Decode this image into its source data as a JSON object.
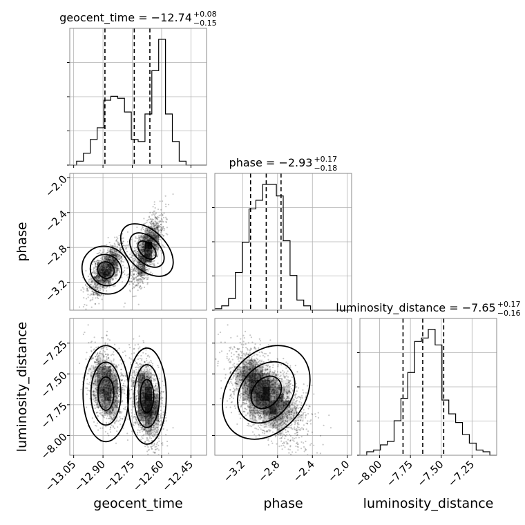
{
  "chart_data": {
    "type": "corner",
    "parameters": [
      "geocent_time",
      "phase",
      "luminosity_distance"
    ],
    "panel_titles": [
      {
        "param": "geocent_time",
        "text": "geocent_time = −12.74",
        "sup": "+0.08",
        "sub": "−0.15"
      },
      {
        "param": "phase",
        "text": "phase = −2.93",
        "sup": "+0.17",
        "sub": "−0.18"
      },
      {
        "param": "luminosity_distance",
        "text": "luminosity_distance = −7.65",
        "sup": "+0.17",
        "sub": "−0.16"
      }
    ],
    "axis_labels": {
      "bottom": [
        "geocent_time",
        "phase",
        "luminosity_distance"
      ],
      "left": [
        "phase",
        "luminosity_distance"
      ]
    },
    "ranges": {
      "geocent_time": [
        -13.07,
        -12.37
      ],
      "phase": [
        -3.52,
        -1.95
      ],
      "luminosity_distance": [
        -8.16,
        -7.05
      ]
    },
    "ticks": {
      "geocent_time": [
        {
          "v": -13.05,
          "label": "−13.05"
        },
        {
          "v": -12.9,
          "label": "−12.90"
        },
        {
          "v": -12.75,
          "label": "−12.75"
        },
        {
          "v": -12.6,
          "label": "−12.60"
        },
        {
          "v": -12.45,
          "label": "−12.45"
        }
      ],
      "phase": [
        {
          "v": -3.2,
          "label": "−3.2"
        },
        {
          "v": -2.8,
          "label": "−2.8"
        },
        {
          "v": -2.4,
          "label": "−2.4"
        },
        {
          "v": -2.0,
          "label": "−2.0"
        }
      ],
      "luminosity_distance": [
        {
          "v": -8.0,
          "label": "−8.00"
        },
        {
          "v": -7.75,
          "label": "−7.75"
        },
        {
          "v": -7.5,
          "label": "−7.50"
        },
        {
          "v": -7.25,
          "label": "−7.25"
        }
      ]
    },
    "quantiles": {
      "geocent_time": [
        -12.89,
        -12.74,
        -12.66
      ],
      "phase": [
        -3.11,
        -2.93,
        -2.76
      ],
      "luminosity_distance": [
        -7.81,
        -7.65,
        -7.48
      ]
    },
    "histograms": {
      "geocent_time": {
        "start": -13.07,
        "step": 0.035,
        "counts": [
          0,
          2,
          6,
          13,
          19,
          33,
          35,
          34,
          27,
          13,
          12,
          26,
          48,
          64,
          26,
          12,
          2,
          0,
          0,
          0
        ]
      },
      "phase": {
        "start": -3.52,
        "step": 0.0785,
        "counts": [
          1,
          3,
          8,
          26,
          47,
          70,
          76,
          87,
          87,
          79,
          48,
          24,
          7,
          3,
          0,
          0,
          0,
          0,
          0,
          0
        ]
      },
      "luminosity_distance": {
        "start": -8.16,
        "step": 0.0555,
        "counts": [
          0,
          2,
          3,
          6,
          8,
          20,
          33,
          48,
          66,
          68,
          73,
          64,
          32,
          24,
          19,
          12,
          7,
          3,
          2,
          0
        ]
      }
    },
    "grid": true,
    "density_color": "#000000",
    "contour_color": "#000000"
  }
}
